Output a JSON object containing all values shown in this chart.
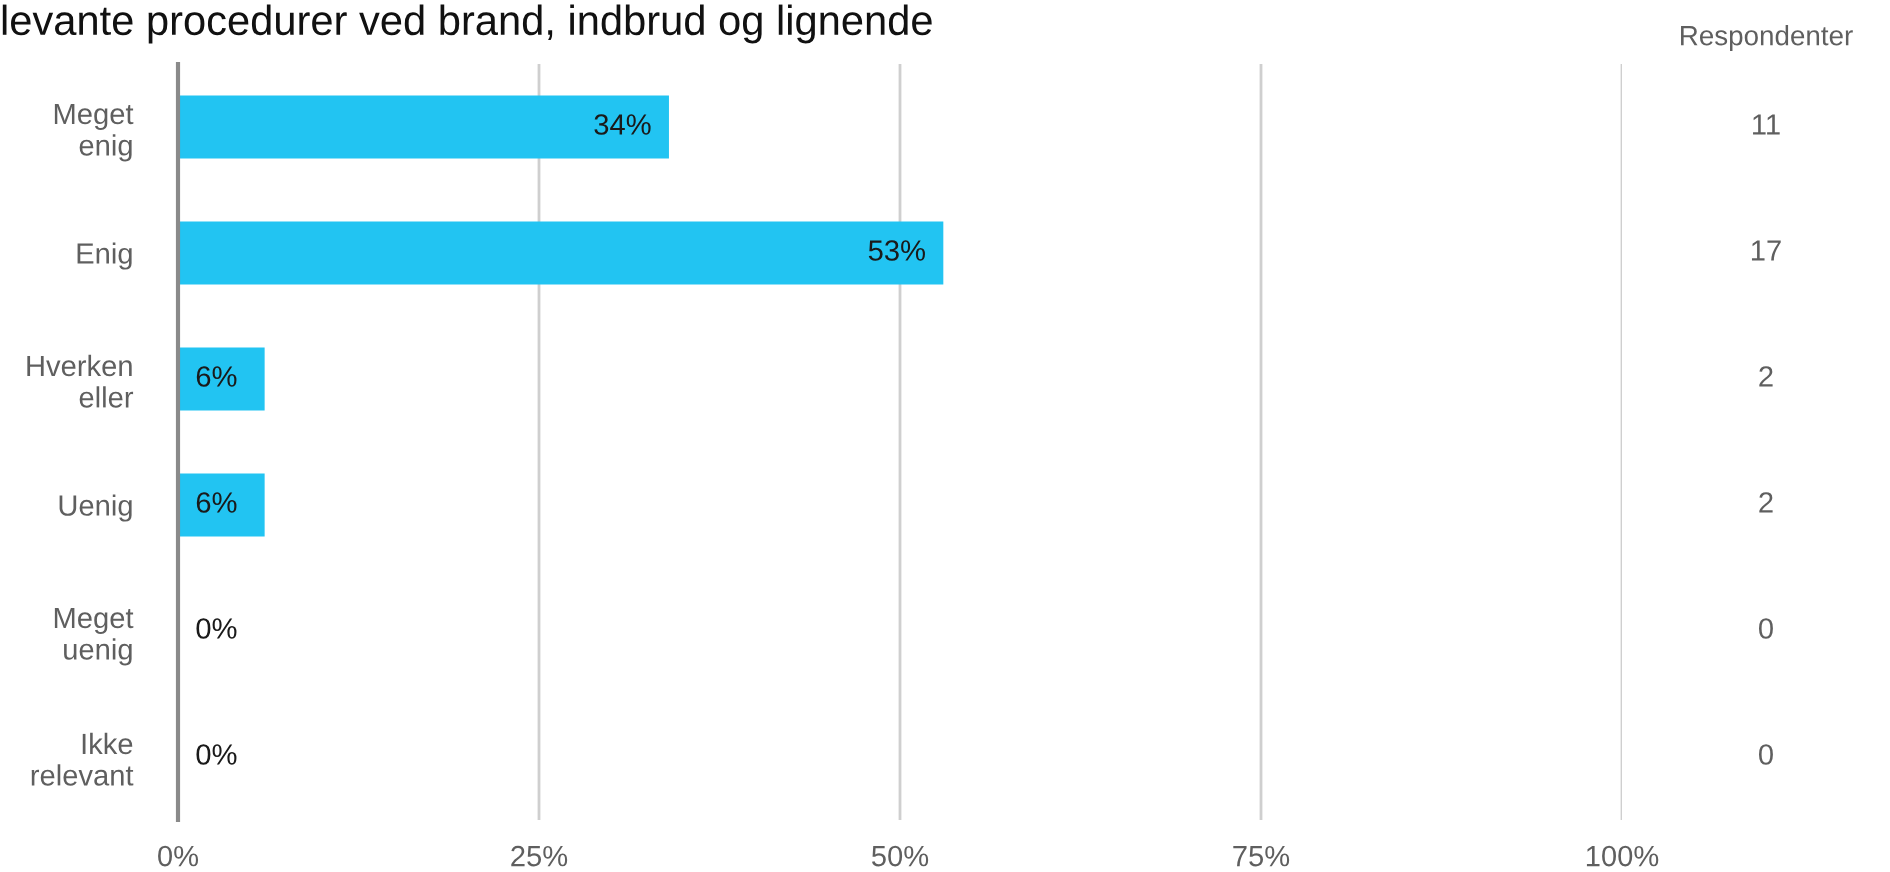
{
  "chart_data": {
    "type": "bar",
    "orientation": "horizontal",
    "title": "levante procedurer ved brand, indbrud og lignende",
    "categories": [
      "Meget\nenig",
      "Enig",
      "Hverken\neller",
      "Uenig",
      "Meget\nuenig",
      "Ikke\nrelevant"
    ],
    "values": [
      34,
      53,
      6,
      6,
      0,
      0
    ],
    "color": "#22c4f2",
    "value_labels": [
      "34%",
      "53%",
      "6%",
      "6%",
      "0%",
      "0%"
    ],
    "xlim": [
      0,
      100
    ],
    "xticks": [
      {
        "value": 0,
        "label": "0%"
      },
      {
        "value": 25,
        "label": "25%"
      },
      {
        "value": 50,
        "label": "50%"
      },
      {
        "value": 75,
        "label": "75%"
      },
      {
        "value": 100,
        "label": "100%"
      }
    ],
    "grid": "x",
    "annotations": [
      "Respondenter",
      "11",
      "17",
      "2",
      "2",
      "0",
      "0"
    ]
  }
}
